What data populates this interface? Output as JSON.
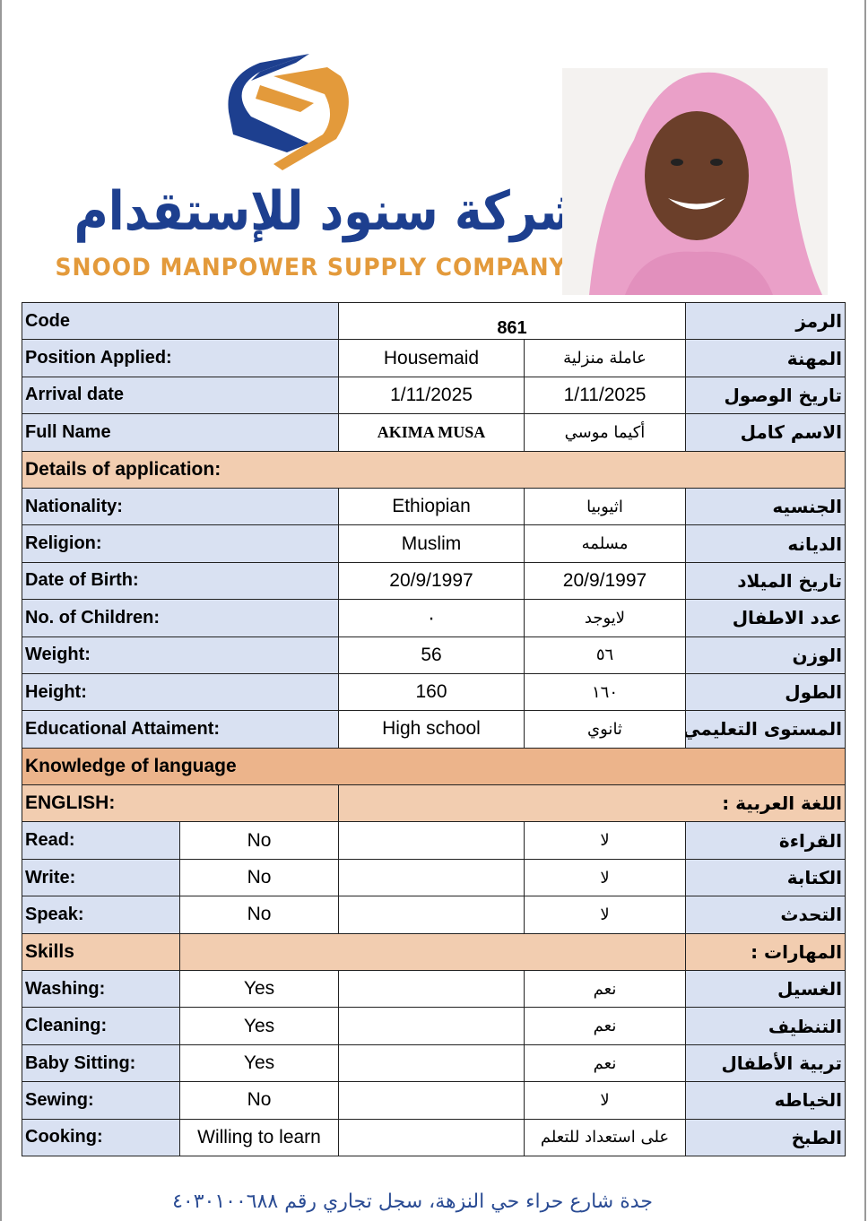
{
  "header": {
    "company_arabic": "شركة سنود للإستقدام",
    "company_english": "SNOOD MANPOWER SUPPLY COMPANY",
    "brand_blue": "#1d3f8f",
    "brand_orange": "#e39a3b"
  },
  "photo": {
    "description_icon": "person-photo"
  },
  "top_rows": [
    {
      "en": "Code",
      "value": "861",
      "ar": "الرمز"
    },
    {
      "en": "Position Applied:",
      "value": "Housemaid",
      "value_ar": "عاملة منزلية",
      "ar": "المهنة"
    },
    {
      "en": "Arrival date",
      "value": "1/11/2025",
      "value_ar": "1/11/2025",
      "ar": "تاريخ الوصول"
    },
    {
      "en": "Full Name",
      "value": "AKIMA MUSA",
      "value_ar": "أكيما موسي",
      "ar": "الاسم كامل"
    }
  ],
  "details_header": "Details of application:",
  "details": [
    {
      "en": "Nationality:",
      "value": "Ethiopian",
      "value_ar": "اثيوبيا",
      "ar": "الجنسيه"
    },
    {
      "en": "Religion:",
      "value": "Muslim",
      "value_ar": "مسلمه",
      "ar": "الديانه"
    },
    {
      "en": "Date of Birth:",
      "value": "20/9/1997",
      "value_ar": "20/9/1997",
      "ar": "تاريخ الميلاد"
    },
    {
      "en": "No. of Children:",
      "value": "٠",
      "value_ar": "لايوجد",
      "ar": "عدد الاطفال"
    },
    {
      "en": "Weight:",
      "value": "56",
      "value_ar": "٥٦",
      "ar": "الوزن"
    },
    {
      "en": "Height:",
      "value": "160",
      "value_ar": "١٦٠",
      "ar": "الطول"
    },
    {
      "en": "Educational Attaiment:",
      "value": "High school",
      "value_ar": "ثانوي",
      "ar": "المستوى التعليمي"
    }
  ],
  "language_header": "Knowledge of language",
  "english_label": "ENGLISH:",
  "arabic_label": "اللغة العربية :",
  "languages": [
    {
      "en": "Read:",
      "value": "No",
      "value_ar": "لا",
      "ar": "القراءة"
    },
    {
      "en": "Write:",
      "value": "No",
      "value_ar": "لا",
      "ar": "الكتابة"
    },
    {
      "en": "Speak:",
      "value": "No",
      "value_ar": "لا",
      "ar": "التحدث"
    }
  ],
  "skills_header": "Skills",
  "skills_header_ar": "المهارات :",
  "skills": [
    {
      "en": "Washing:",
      "value": "Yes",
      "value_ar": "نعم",
      "ar": "الغسيل"
    },
    {
      "en": "Cleaning:",
      "value": "Yes",
      "value_ar": "نعم",
      "ar": "التنظيف"
    },
    {
      "en": "Baby Sitting:",
      "value": "Yes",
      "value_ar": "نعم",
      "ar": "تربية الأطفال"
    },
    {
      "en": "Sewing:",
      "value": "No",
      "value_ar": "لا",
      "ar": "الخياطه"
    },
    {
      "en": "Cooking:",
      "value": "Willing to learn",
      "value_ar": "على استعداد للتعلم",
      "ar": "الطبخ"
    }
  ],
  "footer": "جدة شارع حراء حي النزهة، سجل تجاري رقم ٤٠٣٠١٠٠٦٨٨"
}
